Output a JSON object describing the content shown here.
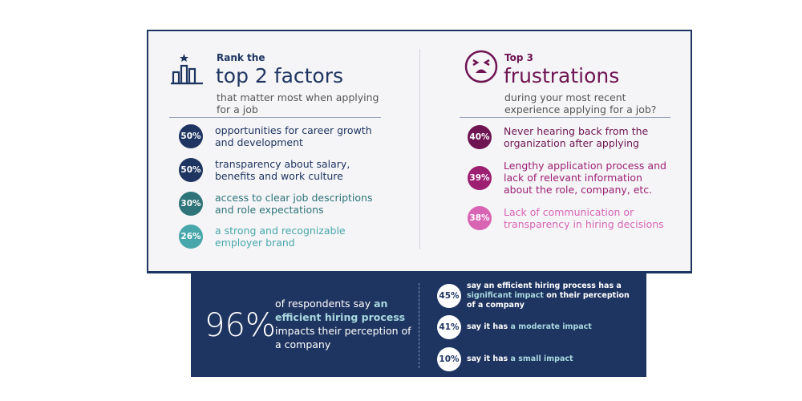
{
  "left": {
    "kicker": "Rank the",
    "title": "top 2 factors",
    "subtitle": "that matter most when applying for a job",
    "items": [
      {
        "pct": "50%",
        "text": "opportunities for career growth and development",
        "color": "#1f3561"
      },
      {
        "pct": "50%",
        "text": "transparency about salary, benefits and work culture",
        "color": "#1f3561"
      },
      {
        "pct": "30%",
        "text": "access to clear job descriptions and role expectations",
        "color": "#2e7479"
      },
      {
        "pct": "26%",
        "text": "a strong and recognizable employer brand",
        "color": "#47a7ab"
      }
    ]
  },
  "right": {
    "kicker": "Top 3",
    "title": "frustrations",
    "subtitle": "during your most recent experience applying for a job?",
    "items": [
      {
        "pct": "40%",
        "text": "Never hearing back from the organization after applying",
        "color": "#6e1452"
      },
      {
        "pct": "39%",
        "text": "Lengthy application process and lack of relevant information about the role, company, etc.",
        "color": "#9c1f72"
      },
      {
        "pct": "38%",
        "text": "Lack of communication or transparency in hiring decisions",
        "color": "#d964b4"
      }
    ]
  },
  "bottom": {
    "big": "96%",
    "text_a": "of respondents say ",
    "text_hl": "an efficient hiring process",
    "text_b": " impacts their perception of a company",
    "stats": [
      {
        "pct": "45%",
        "a": "say an efficient hiring process has a ",
        "hl": "significant impact",
        "b": " on their perception of a company"
      },
      {
        "pct": "41%",
        "a": "say it has ",
        "hl": "a moderate impact",
        "b": ""
      },
      {
        "pct": "10%",
        "a": "say it has ",
        "hl": "a small impact",
        "b": ""
      }
    ]
  }
}
